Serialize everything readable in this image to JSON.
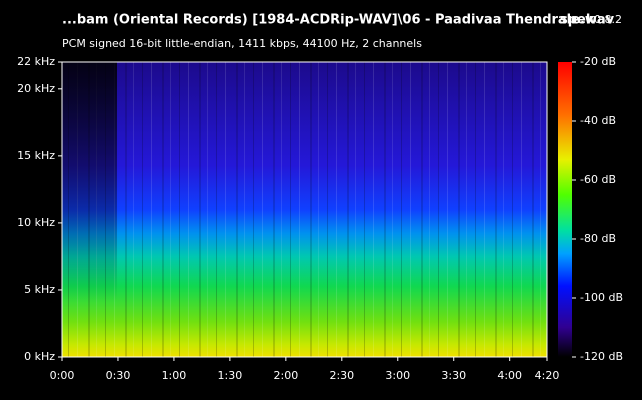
{
  "header": {
    "title": "...bam (Oriental Records) [1984-ACDRip-WAV]\\06 - Paadivaa Thendrale.wav",
    "app": "spek",
    "version": "0.8.2",
    "subtitle": "PCM signed 16-bit little-endian, 1411 kbps, 44100 Hz, 2 channels"
  },
  "frequency_axis": {
    "range": [
      0,
      22
    ],
    "ticks": [
      {
        "value": 0,
        "label": "0 kHz"
      },
      {
        "value": 5,
        "label": "5 kHz"
      },
      {
        "value": 10,
        "label": "10 kHz"
      },
      {
        "value": 15,
        "label": "15 kHz"
      },
      {
        "value": 20,
        "label": "20 kHz"
      },
      {
        "value": 22,
        "label": "22 kHz"
      }
    ]
  },
  "time_axis": {
    "range": [
      0,
      260
    ],
    "ticks": [
      {
        "value": 0,
        "label": "0:00"
      },
      {
        "value": 30,
        "label": "0:30"
      },
      {
        "value": 60,
        "label": "1:00"
      },
      {
        "value": 90,
        "label": "1:30"
      },
      {
        "value": 120,
        "label": "2:00"
      },
      {
        "value": 150,
        "label": "2:30"
      },
      {
        "value": 180,
        "label": "3:00"
      },
      {
        "value": 210,
        "label": "3:30"
      },
      {
        "value": 240,
        "label": "4:00"
      },
      {
        "value": 260,
        "label": "4:20"
      }
    ]
  },
  "level_scale": {
    "range": [
      -120,
      -20
    ],
    "ticks": [
      {
        "value": -20,
        "label": "-20 dB"
      },
      {
        "value": -40,
        "label": "-40 dB"
      },
      {
        "value": -60,
        "label": "-60 dB"
      },
      {
        "value": -80,
        "label": "-80 dB"
      },
      {
        "value": -100,
        "label": "-100 dB"
      },
      {
        "value": -120,
        "label": "-120 dB"
      }
    ]
  }
}
